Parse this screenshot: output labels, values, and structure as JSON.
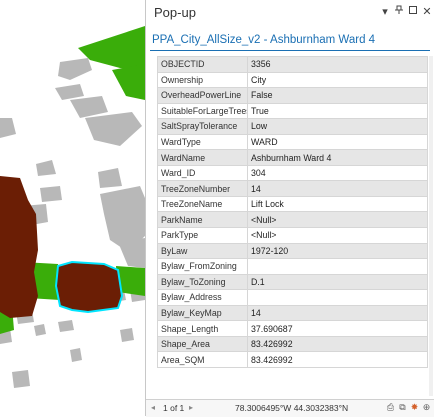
{
  "popup": {
    "title": "Pop-up",
    "header_icons": [
      "chevron-down-icon",
      "pin-icon",
      "maximize-icon",
      "close-icon"
    ],
    "feature_title": "PPA_City_AllSize_v2 - Ashburnham Ward 4",
    "attributes": [
      {
        "field": "OBJECTID",
        "value": "3356"
      },
      {
        "field": "Ownership",
        "value": "City"
      },
      {
        "field": "OverheadPowerLine",
        "value": "False"
      },
      {
        "field": "SuitableForLargeTrees",
        "value": "True"
      },
      {
        "field": "SaltSprayTolerance",
        "value": "Low"
      },
      {
        "field": "WardType",
        "value": "WARD"
      },
      {
        "field": "WardName",
        "value": "Ashburnham Ward 4"
      },
      {
        "field": "Ward_ID",
        "value": "304"
      },
      {
        "field": "TreeZoneNumber",
        "value": "14"
      },
      {
        "field": "TreeZoneName",
        "value": "Lift Lock"
      },
      {
        "field": "ParkName",
        "value": "<Null>"
      },
      {
        "field": "ParkType",
        "value": "<Null>"
      },
      {
        "field": "ByLaw",
        "value": "1972-120"
      },
      {
        "field": "Bylaw_FromZoning",
        "value": ""
      },
      {
        "field": "Bylaw_ToZoning",
        "value": "D.1"
      },
      {
        "field": "Bylaw_Address",
        "value": ""
      },
      {
        "field": "Bylaw_KeyMap",
        "value": "14"
      },
      {
        "field": "Shape_Length",
        "value": "37.690687"
      },
      {
        "field": "Shape_Area",
        "value": "83.426992"
      },
      {
        "field": "Area_SQM",
        "value": "83.426992"
      }
    ],
    "footer": {
      "pager": "1 of 1",
      "coordinates": "78.3006495°W 44.3032383°N"
    }
  },
  "colors": {
    "green_parcel": "#3aad0a",
    "brown_parcel": "#6b1e05",
    "gray_parcel": "#b8b8b8",
    "selection_outline": "#00e5ff",
    "link_blue": "#1a6fb3"
  }
}
